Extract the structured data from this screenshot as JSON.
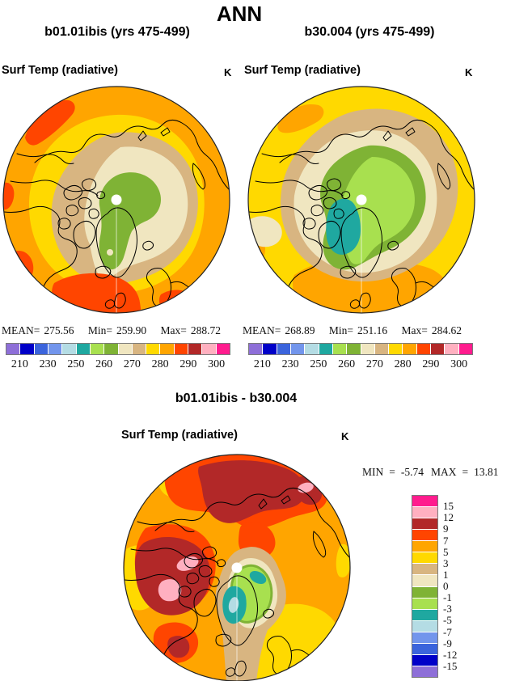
{
  "page_title": "ANN",
  "panels": {
    "left": {
      "title": "b01.01ibis (yrs 475-499)",
      "field": "Surf Temp (radiative)",
      "units": "K",
      "stats": {
        "mean_label": "MEAN=",
        "mean": "275.56",
        "min_label": "Min=",
        "min": "259.90",
        "max_label": "Max=",
        "max": "288.72"
      }
    },
    "right": {
      "title": "b30.004 (yrs 475-499)",
      "field": "Surf Temp (radiative)",
      "units": "K",
      "stats": {
        "mean_label": "MEAN=",
        "mean": "268.89",
        "min_label": "Min=",
        "min": "251.16",
        "max_label": "Max=",
        "max": "284.62"
      }
    },
    "diff": {
      "title": "b01.01ibis - b30.004",
      "field": "Surf Temp (radiative)",
      "units": "K",
      "stats": {
        "min_label": "MIN",
        "eq": "=",
        "min": "-5.74",
        "max_label": "MAX",
        "max": "13.81"
      }
    }
  },
  "palette": {
    "colors": [
      "#8E6FD8",
      "#0000C8",
      "#3B64DC",
      "#7295EC",
      "#B4DCE4",
      "#1FA8A0",
      "#A8E04F",
      "#7FB335",
      "#F0E6C0",
      "#D8B581",
      "#FFD900",
      "#FFA500",
      "#FF4500",
      "#B22828",
      "#FFB0C0",
      "#FF1C8E"
    ],
    "names": [
      "purple",
      "dark-blue",
      "royal-blue",
      "cornflower-blue",
      "pale-cyan",
      "teal",
      "yellow-green",
      "olive-green",
      "cream",
      "tan",
      "yellow",
      "orange",
      "red-orange",
      "brick-red",
      "pink",
      "magenta"
    ]
  },
  "temp_colorbar": {
    "tick_labels": [
      "210",
      "230",
      "250",
      "260",
      "270",
      "280",
      "290",
      "300"
    ]
  },
  "diff_colorbar": {
    "tick_labels": [
      "15",
      "12",
      "9",
      "7",
      "5",
      "3",
      "1",
      "0",
      "-1",
      "-3",
      "-5",
      "-7",
      "-9",
      "-12",
      "-15"
    ]
  },
  "chart_data": [
    {
      "type": "heatmap",
      "subtype": "polar-stereographic-filled-contour-map",
      "region": "Northern Hemisphere polar view",
      "title": "b01.01ibis (yrs 475-499)",
      "variable": "Surf Temp (radiative)",
      "units": "K",
      "stats": {
        "mean": 275.56,
        "min": 259.9,
        "max": 288.72
      },
      "contour_levels": [
        210,
        220,
        230,
        240,
        250,
        255,
        260,
        265,
        270,
        275,
        280,
        285,
        290,
        295,
        300
      ],
      "tick_labels": [
        210,
        230,
        250,
        260,
        270,
        280,
        290,
        300
      ],
      "legend_position": "bottom"
    },
    {
      "type": "heatmap",
      "subtype": "polar-stereographic-filled-contour-map",
      "region": "Northern Hemisphere polar view",
      "title": "b30.004 (yrs 475-499)",
      "variable": "Surf Temp (radiative)",
      "units": "K",
      "stats": {
        "mean": 268.89,
        "min": 251.16,
        "max": 284.62
      },
      "contour_levels": [
        210,
        220,
        230,
        240,
        250,
        255,
        260,
        265,
        270,
        275,
        280,
        285,
        290,
        295,
        300
      ],
      "tick_labels": [
        210,
        230,
        250,
        260,
        270,
        280,
        290,
        300
      ],
      "legend_position": "bottom"
    },
    {
      "type": "heatmap",
      "subtype": "polar-stereographic-filled-contour-difference-map",
      "region": "Northern Hemisphere polar view",
      "title": "b01.01ibis - b30.004",
      "variable": "Surf Temp (radiative)",
      "units": "K",
      "stats": {
        "min": -5.74,
        "max": 13.81
      },
      "contour_levels": [
        -15,
        -12,
        -9,
        -7,
        -5,
        -3,
        -1,
        0,
        1,
        3,
        5,
        7,
        9,
        12,
        15
      ],
      "tick_labels": [
        15,
        12,
        9,
        7,
        5,
        3,
        1,
        0,
        -1,
        -3,
        -5,
        -7,
        -9,
        -12,
        -15
      ],
      "legend_position": "right"
    }
  ]
}
